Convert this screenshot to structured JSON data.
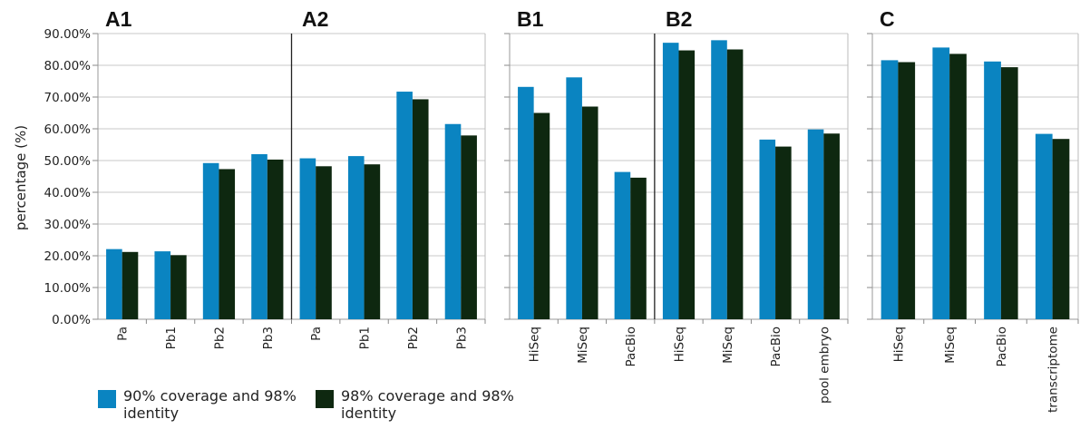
{
  "figure": {
    "ylabel": "percentage (%)",
    "colors": {
      "series_90": "#0a84c1",
      "series_98": "#0e2810"
    },
    "legend": [
      {
        "label": "90% coverage and 98% identity",
        "color": "#0a84c1"
      },
      {
        "label": "98% coverage and 98% identity",
        "color": "#0e2810"
      }
    ]
  },
  "chart_data": [
    {
      "panel": "A1",
      "type": "bar",
      "categories": [
        "Pa",
        "Pb1",
        "Pb2",
        "Pb3"
      ],
      "series": [
        {
          "name": "90% coverage and 98% identity",
          "values": [
            22.1,
            21.4,
            49.2,
            52.0
          ]
        },
        {
          "name": "98% coverage and 98% identity",
          "values": [
            21.2,
            20.2,
            47.3,
            50.3
          ]
        }
      ],
      "ylim": [
        0,
        90
      ],
      "yticks": [
        "0.00%",
        "10.00%",
        "20.00%",
        "30.00%",
        "40.00%",
        "50.00%",
        "60.00%",
        "70.00%",
        "80.00%",
        "90.00%"
      ]
    },
    {
      "panel": "A2",
      "type": "bar",
      "categories": [
        "Pa",
        "Pb1",
        "Pb2",
        "Pb3"
      ],
      "series": [
        {
          "name": "90% coverage and 98% identity",
          "values": [
            50.7,
            51.4,
            71.7,
            61.5
          ]
        },
        {
          "name": "98% coverage and 98% identity",
          "values": [
            48.2,
            48.8,
            69.3,
            57.9
          ]
        }
      ],
      "ylim": [
        0,
        90
      ]
    },
    {
      "panel": "B1",
      "type": "bar",
      "categories": [
        "HiSeq",
        "MiSeq",
        "PacBio"
      ],
      "series": [
        {
          "name": "90% coverage and 98% identity",
          "values": [
            73.2,
            76.2,
            46.4
          ]
        },
        {
          "name": "98% coverage and 98% identity",
          "values": [
            65.0,
            67.0,
            44.6
          ]
        }
      ],
      "ylim": [
        0,
        90
      ]
    },
    {
      "panel": "B2",
      "type": "bar",
      "categories": [
        "HiSeq",
        "MiSeq",
        "PacBio",
        "pool embryo"
      ],
      "series": [
        {
          "name": "90% coverage and 98% identity",
          "values": [
            87.1,
            87.9,
            56.6,
            59.8
          ]
        },
        {
          "name": "98% coverage and 98% identity",
          "values": [
            84.7,
            85.0,
            54.4,
            58.5
          ]
        }
      ],
      "ylim": [
        0,
        90
      ]
    },
    {
      "panel": "C",
      "type": "bar",
      "categories": [
        "HiSeq",
        "MiSeq",
        "PacBio",
        "transcriptome"
      ],
      "series": [
        {
          "name": "90% coverage and 98% identity",
          "values": [
            81.6,
            85.6,
            81.2,
            58.4
          ]
        },
        {
          "name": "98% coverage and 98% identity",
          "values": [
            81.0,
            83.6,
            79.4,
            56.8
          ]
        }
      ],
      "ylim": [
        0,
        90
      ]
    }
  ]
}
